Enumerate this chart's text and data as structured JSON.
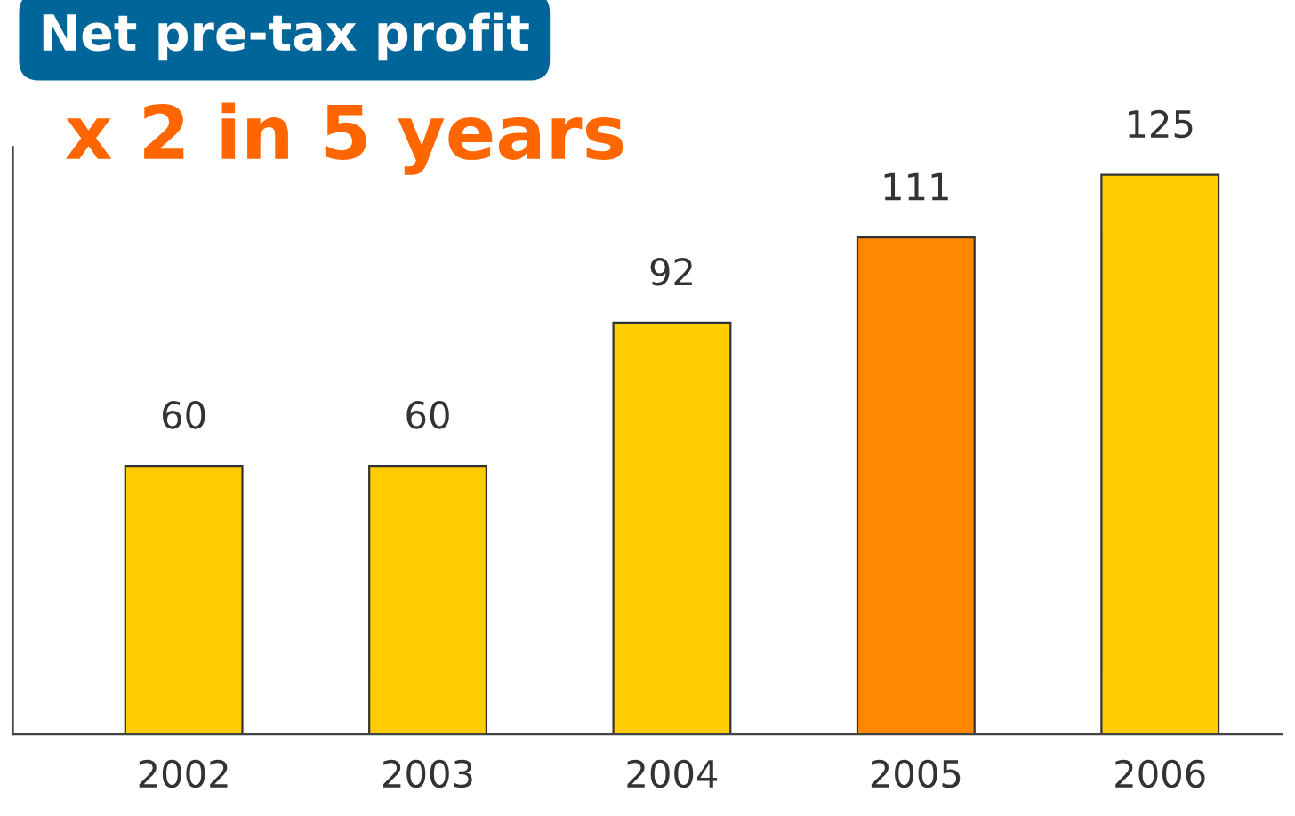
{
  "chart_data": {
    "type": "bar",
    "title": "Net pre-tax profit",
    "annotations": [
      "x 2 in 5 years"
    ],
    "categories": [
      "2002",
      "2003",
      "2004",
      "2005",
      "2006"
    ],
    "values": [
      60,
      60,
      92,
      111,
      125
    ],
    "colors": [
      "#ffcc00",
      "#ffcc00",
      "#ffcc00",
      "#ff8800",
      "#ffcc00"
    ],
    "data_labels": true,
    "grid": false,
    "legend": false
  }
}
